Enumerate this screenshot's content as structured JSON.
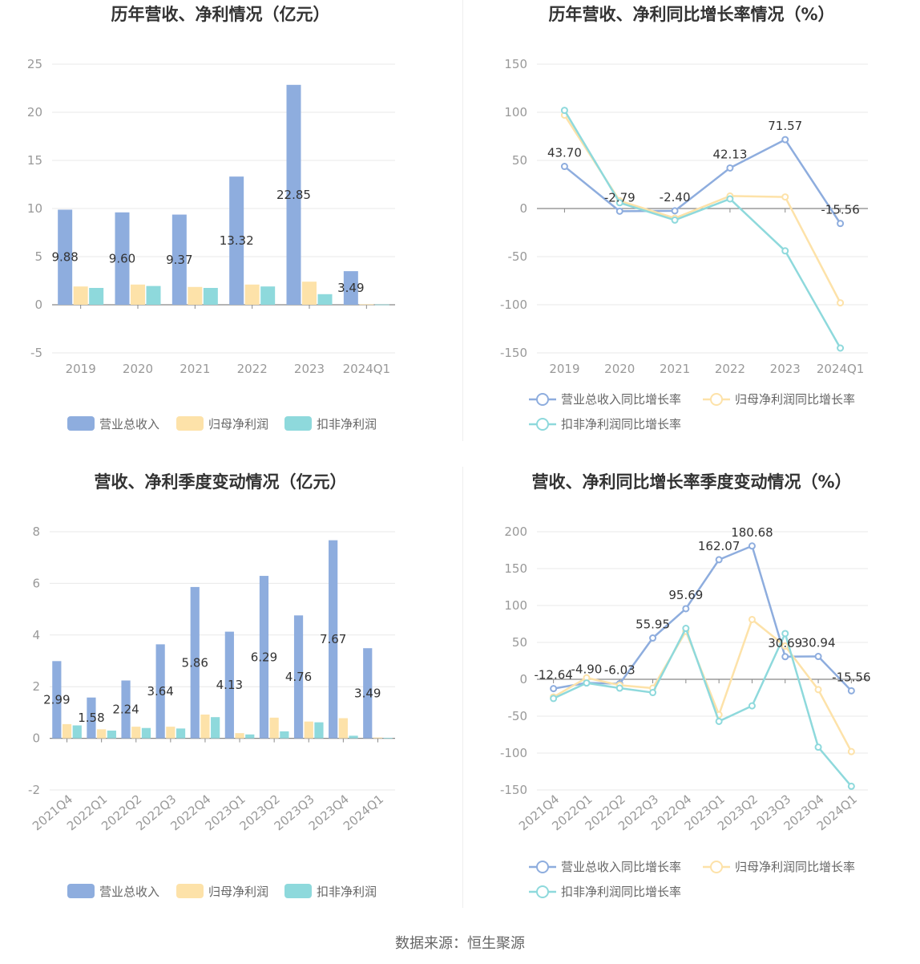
{
  "source_label": "数据来源：恒生聚源",
  "colors": {
    "revenue": "#8eadde",
    "parent_profit": "#fde2a9",
    "deducted_profit": "#8ed9dc"
  },
  "chart_data": [
    {
      "type": "bar",
      "title": "历年营收、净利情况（亿元）",
      "categories": [
        "2019",
        "2020",
        "2021",
        "2022",
        "2023",
        "2024Q1"
      ],
      "ylim": [
        -5,
        25
      ],
      "yticks": [
        -5,
        0,
        5,
        10,
        15,
        20,
        25
      ],
      "series": [
        {
          "name": "营业总收入",
          "values": [
            9.88,
            9.6,
            9.37,
            13.32,
            22.85,
            3.49
          ],
          "labels": [
            "9.88",
            "9.60",
            "9.37",
            "13.32",
            "22.85",
            "3.49"
          ]
        },
        {
          "name": "归母净利润",
          "values": [
            1.9,
            2.1,
            1.85,
            2.1,
            2.4,
            0.05
          ]
        },
        {
          "name": "扣非净利润",
          "values": [
            1.75,
            1.95,
            1.75,
            1.9,
            1.1,
            0.03
          ]
        }
      ],
      "legend": "bottom"
    },
    {
      "type": "line",
      "title": "历年营收、净利同比增长率情况（%）",
      "categories": [
        "2019",
        "2020",
        "2021",
        "2022",
        "2023",
        "2024Q1"
      ],
      "ylim": [
        -150,
        150
      ],
      "yticks": [
        -150,
        -100,
        -50,
        0,
        50,
        100,
        150
      ],
      "series": [
        {
          "name": "营业总收入同比增长率",
          "values": [
            43.7,
            -2.79,
            -2.4,
            42.13,
            71.57,
            -15.56
          ],
          "labels": [
            "43.70",
            "-2.79",
            "-2.40",
            "42.13",
            "71.57",
            "-15.56"
          ]
        },
        {
          "name": "归母净利润同比增长率",
          "values": [
            97,
            8,
            -10,
            13,
            12,
            -98
          ]
        },
        {
          "name": "扣非净利润同比增长率",
          "values": [
            102,
            6,
            -12,
            10,
            -44,
            -145
          ]
        }
      ],
      "legend": "bottom"
    },
    {
      "type": "bar",
      "title": "营收、净利季度变动情况（亿元）",
      "categories": [
        "2021Q4",
        "2022Q1",
        "2022Q2",
        "2022Q3",
        "2022Q4",
        "2023Q1",
        "2023Q2",
        "2023Q3",
        "2023Q4",
        "2024Q1"
      ],
      "ylim": [
        -2,
        8
      ],
      "yticks": [
        -2,
        0,
        2,
        4,
        6,
        8
      ],
      "series": [
        {
          "name": "营业总收入",
          "values": [
            2.99,
            1.58,
            2.24,
            3.64,
            5.86,
            4.13,
            6.29,
            4.76,
            7.67,
            3.49
          ],
          "labels": [
            "2.99",
            "1.58",
            "2.24",
            "3.64",
            "5.86",
            "4.13",
            "6.29",
            "4.76",
            "7.67",
            "3.49"
          ]
        },
        {
          "name": "归母净利润",
          "values": [
            0.55,
            0.35,
            0.45,
            0.45,
            0.92,
            0.2,
            0.8,
            0.65,
            0.78,
            0.03
          ]
        },
        {
          "name": "扣非净利润",
          "values": [
            0.5,
            0.3,
            0.4,
            0.38,
            0.82,
            0.15,
            0.27,
            0.62,
            0.1,
            0.02
          ]
        }
      ],
      "legend": "bottom"
    },
    {
      "type": "line",
      "title": "营收、净利同比增长率季度变动情况（%）",
      "categories": [
        "2021Q4",
        "2022Q1",
        "2022Q2",
        "2022Q3",
        "2022Q4",
        "2023Q1",
        "2023Q2",
        "2023Q3",
        "2023Q4",
        "2024Q1"
      ],
      "ylim": [
        -150,
        200
      ],
      "yticks": [
        -150,
        -100,
        -50,
        0,
        50,
        100,
        150,
        200
      ],
      "series": [
        {
          "name": "营业总收入同比增长率",
          "values": [
            -12.64,
            -4.9,
            -6.03,
            55.95,
            95.69,
            162.07,
            180.68,
            30.69,
            30.94,
            -15.56
          ],
          "labels": [
            "-12.64",
            "-4.90",
            "-6.03",
            "55.95",
            "95.69",
            "162.07",
            "180.68",
            "30.69",
            "30.94",
            "-15.56"
          ]
        },
        {
          "name": "归母净利润同比增长率",
          "values": [
            -24,
            2,
            -8,
            -12,
            65,
            -48,
            81,
            45,
            -14,
            -98
          ]
        },
        {
          "name": "扣非净利润同比增长率",
          "values": [
            -26,
            -5,
            -12,
            -18,
            69,
            -57,
            -36,
            62,
            -92,
            -145
          ]
        }
      ],
      "legend": "bottom"
    }
  ]
}
